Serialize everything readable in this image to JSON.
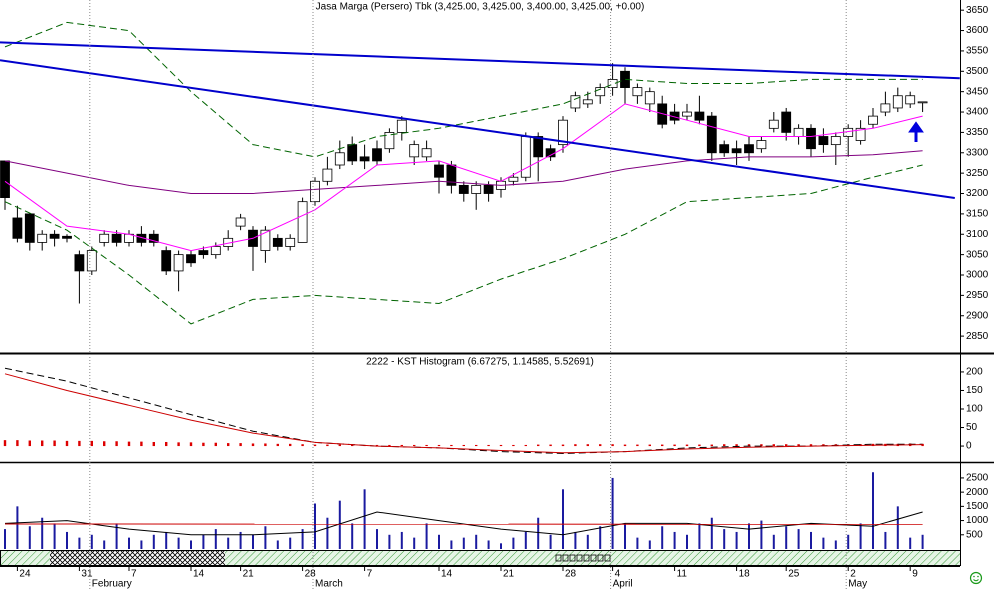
{
  "chart_data": [
    {
      "type": "candlestick",
      "title": "Jasa Marga (Persero) Tbk (3,425.00, 3,425.00, 3,400.00, 3,425.00, +0.00)",
      "categories": [
        null,
        "24",
        null,
        null,
        null,
        null,
        "31",
        null,
        null,
        null,
        "7",
        null,
        null,
        null,
        null,
        "14",
        null,
        null,
        null,
        "21",
        null,
        null,
        null,
        null,
        "28",
        null,
        null,
        null,
        null,
        "7",
        null,
        null,
        null,
        null,
        null,
        "14",
        null,
        null,
        null,
        null,
        "21",
        null,
        null,
        null,
        null,
        "28",
        null,
        null,
        null,
        "4",
        null,
        null,
        null,
        null,
        "11",
        null,
        null,
        null,
        null,
        "18",
        null,
        null,
        null,
        "25",
        null,
        null,
        null,
        null,
        "2",
        null,
        null,
        null,
        null,
        "9",
        null
      ],
      "month_ticks": [
        {
          "value": 7,
          "label": "February"
        },
        {
          "value": 25,
          "label": "March"
        },
        {
          "value": 49,
          "label": "April"
        },
        {
          "value": 68,
          "label": "May"
        }
      ],
      "open": [
        3280,
        3140,
        3150,
        3080,
        3100,
        3095,
        3050,
        3010,
        3080,
        3100,
        3080,
        3100,
        3100,
        3060,
        3010,
        3050,
        3060,
        3050,
        3070,
        3120,
        3110,
        3060,
        3090,
        3070,
        3080,
        3180,
        3230,
        3270,
        3320,
        3290,
        3310,
        3310,
        3350,
        3290,
        3290,
        3270,
        3270,
        3220,
        3200,
        3220,
        3210,
        3230,
        3240,
        3340,
        3310,
        3320,
        3410,
        3420,
        3440,
        3460,
        3500,
        3440,
        3420,
        3420,
        3400,
        3390,
        3400,
        3390,
        3320,
        3310,
        3320,
        3310,
        3360,
        3400,
        3340,
        3360,
        3340,
        3320,
        3340,
        3330,
        3370,
        3400,
        3410,
        3420,
        3425
      ],
      "high": [
        3280,
        3170,
        3150,
        3110,
        3110,
        3100,
        3060,
        3070,
        3110,
        3110,
        3110,
        3120,
        3110,
        3070,
        3060,
        3060,
        3070,
        3080,
        3110,
        3150,
        3120,
        3120,
        3100,
        3100,
        3190,
        3240,
        3290,
        3330,
        3340,
        3320,
        3330,
        3360,
        3390,
        3330,
        3330,
        3280,
        3280,
        3230,
        3230,
        3230,
        3240,
        3250,
        3350,
        3350,
        3320,
        3390,
        3450,
        3450,
        3470,
        3520,
        3510,
        3470,
        3460,
        3440,
        3420,
        3420,
        3440,
        3400,
        3330,
        3330,
        3340,
        3340,
        3400,
        3410,
        3370,
        3370,
        3360,
        3350,
        3370,
        3380,
        3410,
        3450,
        3460,
        3450,
        3425
      ],
      "low": [
        3160,
        3080,
        3060,
        3060,
        3070,
        3080,
        2930,
        3000,
        3070,
        3070,
        3070,
        3070,
        3070,
        3000,
        2960,
        3020,
        3040,
        3040,
        3060,
        3110,
        3010,
        3030,
        3060,
        3060,
        3080,
        3170,
        3220,
        3260,
        3270,
        3260,
        3270,
        3300,
        3330,
        3270,
        3280,
        3200,
        3200,
        3180,
        3160,
        3180,
        3190,
        3220,
        3230,
        3230,
        3280,
        3300,
        3400,
        3410,
        3420,
        3440,
        3420,
        3420,
        3400,
        3360,
        3370,
        3380,
        3370,
        3280,
        3290,
        3270,
        3280,
        3300,
        3350,
        3330,
        3320,
        3290,
        3300,
        3270,
        3290,
        3320,
        3360,
        3390,
        3400,
        3410,
        3400
      ],
      "close": [
        3190,
        3090,
        3080,
        3100,
        3090,
        3090,
        3010,
        3060,
        3100,
        3080,
        3100,
        3080,
        3080,
        3010,
        3050,
        3030,
        3050,
        3070,
        3090,
        3140,
        3070,
        3110,
        3070,
        3090,
        3180,
        3230,
        3260,
        3300,
        3280,
        3280,
        3280,
        3350,
        3380,
        3320,
        3310,
        3240,
        3220,
        3200,
        3220,
        3200,
        3230,
        3240,
        3340,
        3290,
        3290,
        3380,
        3440,
        3430,
        3460,
        3480,
        3460,
        3460,
        3450,
        3370,
        3380,
        3400,
        3380,
        3300,
        3300,
        3300,
        3300,
        3330,
        3380,
        3350,
        3360,
        3310,
        3320,
        3340,
        3360,
        3360,
        3390,
        3420,
        3440,
        3440,
        3425
      ],
      "up_color": "#ffffff",
      "down_color": "#000000",
      "trend_lines": [
        {
          "color": "#0000cc",
          "x": [
            -0.4,
            77
          ],
          "values": [
            3571,
            3483
          ]
        },
        {
          "color": "#0000cc",
          "x": [
            -0.4,
            76.6
          ],
          "values": [
            3527,
            3189
          ]
        }
      ],
      "overlays": [
        {
          "color": "#006400",
          "dashed": true,
          "x": [
            0,
            5,
            10,
            15,
            20,
            25,
            30,
            35,
            40,
            45,
            50,
            55,
            60,
            65,
            70,
            74
          ],
          "values": [
            3560,
            3620,
            3600,
            3450,
            3320,
            3290,
            3340,
            3360,
            3390,
            3420,
            3480,
            3470,
            3470,
            3480,
            3480,
            3480
          ]
        },
        {
          "color": "#006400",
          "dashed": true,
          "x": [
            0,
            5,
            10,
            15,
            20,
            25,
            30,
            35,
            40,
            45,
            50,
            55,
            60,
            65,
            70,
            74
          ],
          "values": [
            3180,
            3110,
            3000,
            2880,
            2940,
            2950,
            2940,
            2930,
            2990,
            3040,
            3100,
            3180,
            3190,
            3200,
            3240,
            3270
          ]
        },
        {
          "color": "#800080",
          "dashed": false,
          "x": [
            0,
            5,
            10,
            15,
            20,
            25,
            30,
            35,
            40,
            45,
            50,
            55,
            60,
            65,
            70,
            74
          ],
          "values": [
            3280,
            3250,
            3220,
            3200,
            3200,
            3210,
            3220,
            3230,
            3220,
            3230,
            3260,
            3280,
            3290,
            3290,
            3295,
            3305
          ]
        },
        {
          "color": "#ff00ff",
          "dashed": false,
          "x": [
            0,
            5,
            10,
            15,
            20,
            25,
            30,
            35,
            40,
            45,
            50,
            55,
            60,
            65,
            70,
            74
          ],
          "values": [
            3230,
            3120,
            3100,
            3060,
            3090,
            3160,
            3270,
            3280,
            3230,
            3310,
            3420,
            3380,
            3340,
            3340,
            3360,
            3390
          ]
        }
      ],
      "ylim": [
        2811,
        3675
      ],
      "yticks": [
        2850,
        2900,
        2950,
        3000,
        3050,
        3100,
        3150,
        3200,
        3250,
        3300,
        3350,
        3400,
        3450,
        3500,
        3550,
        3600,
        3650
      ]
    },
    {
      "type": "line",
      "title": "2222 - KST Histogram (6.67275, 1.14585, 5.52691)",
      "overlays": [
        {
          "color": "#000000",
          "dashed": true,
          "x": [
            0,
            5,
            10,
            15,
            20,
            25,
            30,
            35,
            40,
            45,
            50,
            55,
            60,
            65,
            70,
            74
          ],
          "values": [
            210,
            175,
            130,
            85,
            40,
            10,
            0,
            -5,
            -15,
            -20,
            -15,
            -5,
            0,
            0,
            5,
            5
          ]
        },
        {
          "color": "#cc0000",
          "dashed": false,
          "x": [
            0,
            5,
            10,
            15,
            20,
            25,
            30,
            35,
            40,
            45,
            50,
            55,
            60,
            65,
            70,
            74
          ],
          "values": [
            195,
            150,
            110,
            70,
            35,
            10,
            0,
            -5,
            -12,
            -18,
            -15,
            -8,
            -3,
            0,
            2,
            4
          ]
        }
      ],
      "histogram": {
        "color": "#dd0000",
        "values": [
          16,
          16,
          15,
          15,
          15,
          14,
          14,
          14,
          13,
          13,
          12,
          12,
          11,
          11,
          10,
          10,
          9,
          9,
          8,
          8,
          7,
          7,
          6,
          6,
          5,
          4,
          4,
          4,
          3,
          3,
          3,
          3,
          3,
          3,
          3,
          3,
          3,
          3,
          3,
          3,
          3,
          3,
          3,
          4,
          4,
          4,
          5,
          5,
          5,
          5,
          4,
          4,
          4,
          4,
          4,
          4,
          4,
          4,
          5,
          5,
          5,
          5,
          5,
          5,
          5,
          5,
          5,
          5,
          5,
          5,
          6,
          6,
          6,
          7,
          6
        ]
      },
      "ylim": [
        -43,
        243
      ],
      "yticks": [
        0,
        50,
        100,
        150,
        200
      ]
    },
    {
      "type": "bar",
      "color": "#1a1aa0",
      "values": [
        700,
        1500,
        800,
        1100,
        900,
        600,
        400,
        500,
        300,
        900,
        400,
        300,
        500,
        600,
        400,
        300,
        500,
        700,
        400,
        600,
        500,
        800,
        300,
        400,
        700,
        1600,
        1100,
        1700,
        900,
        2100,
        700,
        500,
        600,
        400,
        900,
        500,
        300,
        400,
        500,
        300,
        200,
        400,
        600,
        1100,
        500,
        2100,
        600,
        500,
        800,
        2500,
        900,
        400,
        300,
        800,
        600,
        500,
        900,
        1100,
        700,
        600,
        900,
        1000,
        500,
        800,
        700,
        600,
        400,
        300,
        500,
        900,
        2700,
        600,
        1500,
        400,
        500
      ],
      "overlays": [
        {
          "color": "#000000",
          "dashed": false,
          "x": [
            0,
            5,
            10,
            15,
            20,
            25,
            30,
            35,
            40,
            45,
            50,
            55,
            60,
            65,
            70,
            74
          ],
          "values": [
            900,
            1000,
            700,
            500,
            500,
            600,
            1300,
            1000,
            700,
            500,
            900,
            900,
            700,
            900,
            800,
            1300
          ]
        },
        {
          "color": "#cc0000",
          "dashed": false,
          "x": [
            0,
            74
          ],
          "values": [
            880,
            870
          ]
        }
      ],
      "ylim": [
        0,
        3025
      ],
      "yticks": [
        500,
        1000,
        1500,
        2000,
        2500
      ]
    }
  ]
}
